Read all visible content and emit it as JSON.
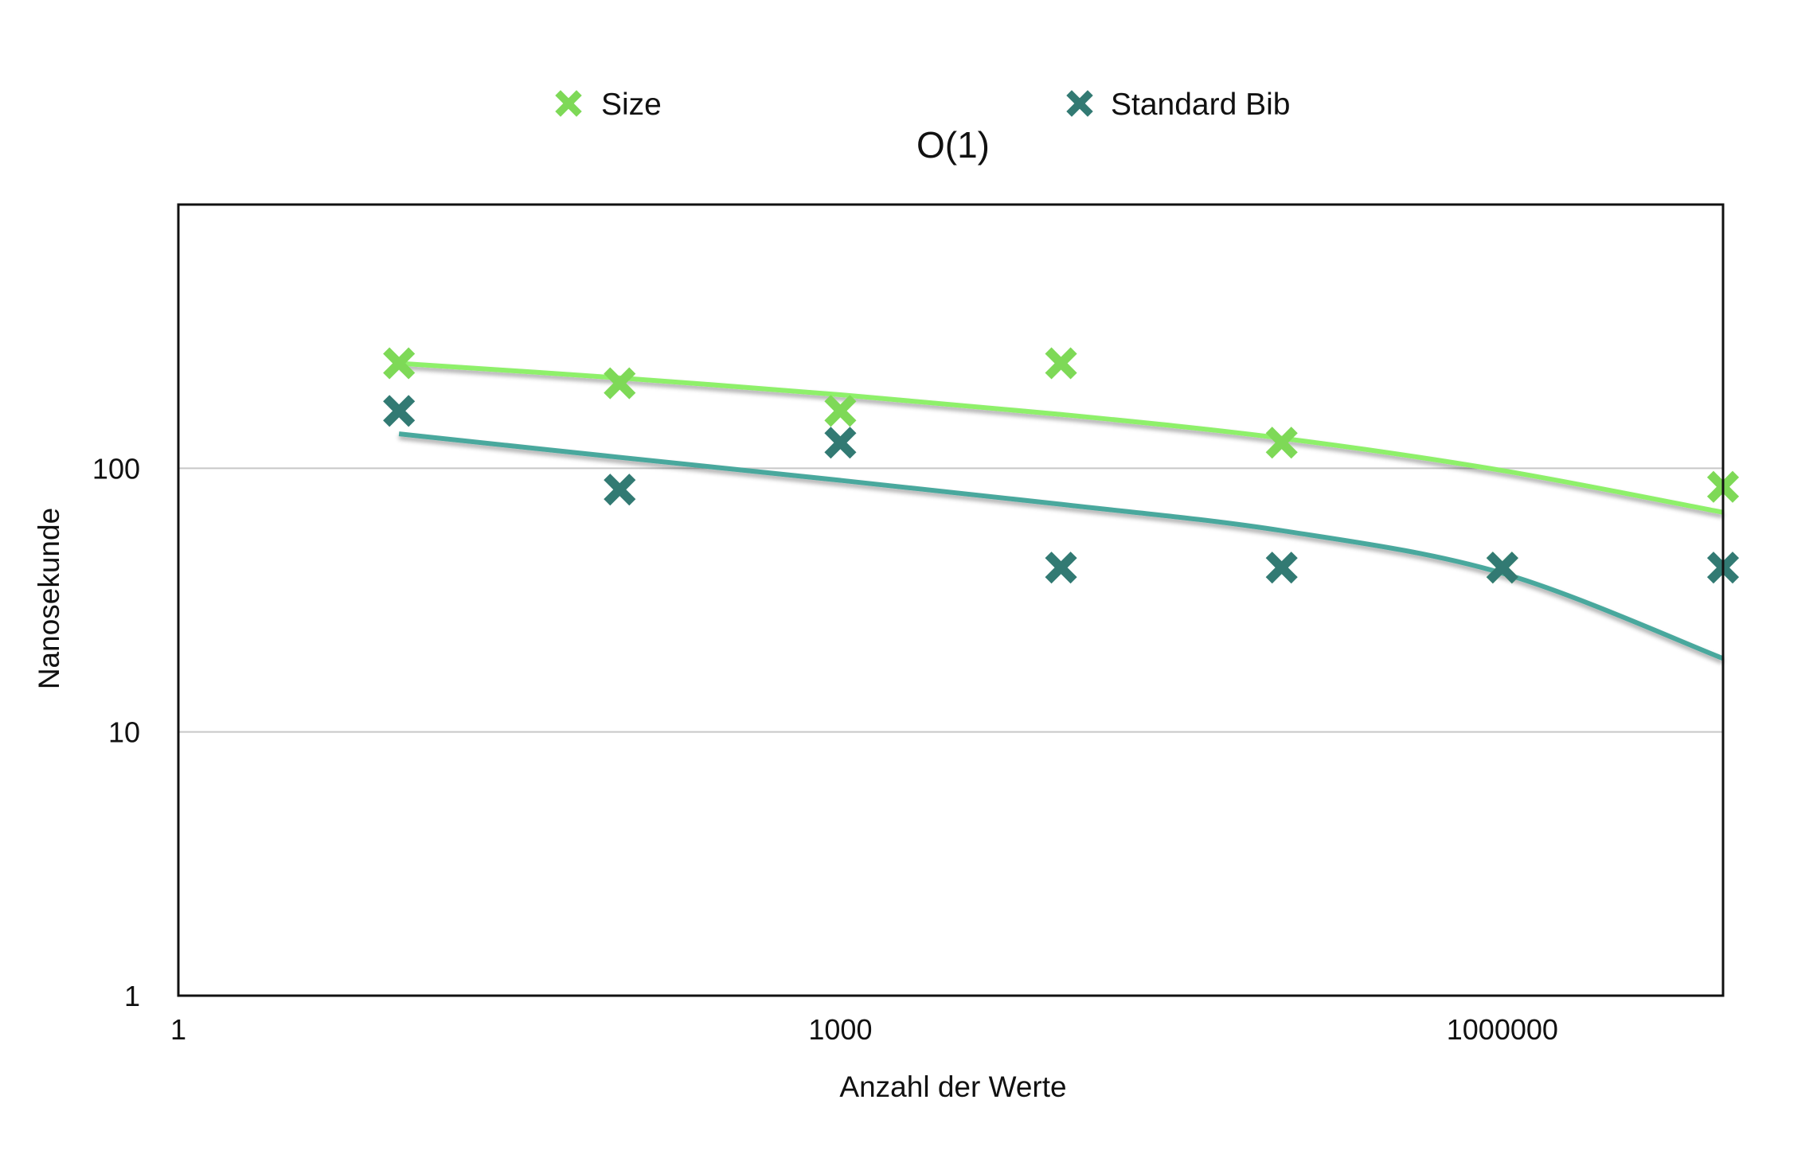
{
  "chart_data": {
    "type": "scatter",
    "title": "O(1)",
    "xlabel": "Anzahl der Werte",
    "ylabel": "Nanosekunde",
    "x_scale": "log",
    "y_scale": "log",
    "xlim": [
      1,
      10000000
    ],
    "ylim": [
      1,
      1000
    ],
    "x_ticks": [
      "1",
      "1000",
      "1000000"
    ],
    "y_ticks": [
      "1",
      "10",
      "100"
    ],
    "grid": "horizontal",
    "legend": "top",
    "series": [
      {
        "name": "Size",
        "color": "#7ed957",
        "trend_color": "#8ef06a",
        "marker": "x",
        "x": [
          10,
          100,
          1000,
          10000,
          100000,
          1000000,
          10000000
        ],
        "y": [
          250,
          210,
          165,
          250,
          125,
          42,
          85
        ],
        "trend": [
          250,
          220,
          190,
          160,
          130,
          98,
          68
        ]
      },
      {
        "name": "Standard Bib",
        "color": "#327a73",
        "trend_color": "#4aa89d",
        "marker": "x",
        "x": [
          10,
          100,
          1000,
          10000,
          100000,
          1000000,
          10000000
        ],
        "y": [
          165,
          83,
          125,
          42,
          42,
          42,
          42
        ],
        "trend": [
          135,
          110,
          90,
          73,
          58,
          40,
          19
        ]
      }
    ]
  }
}
